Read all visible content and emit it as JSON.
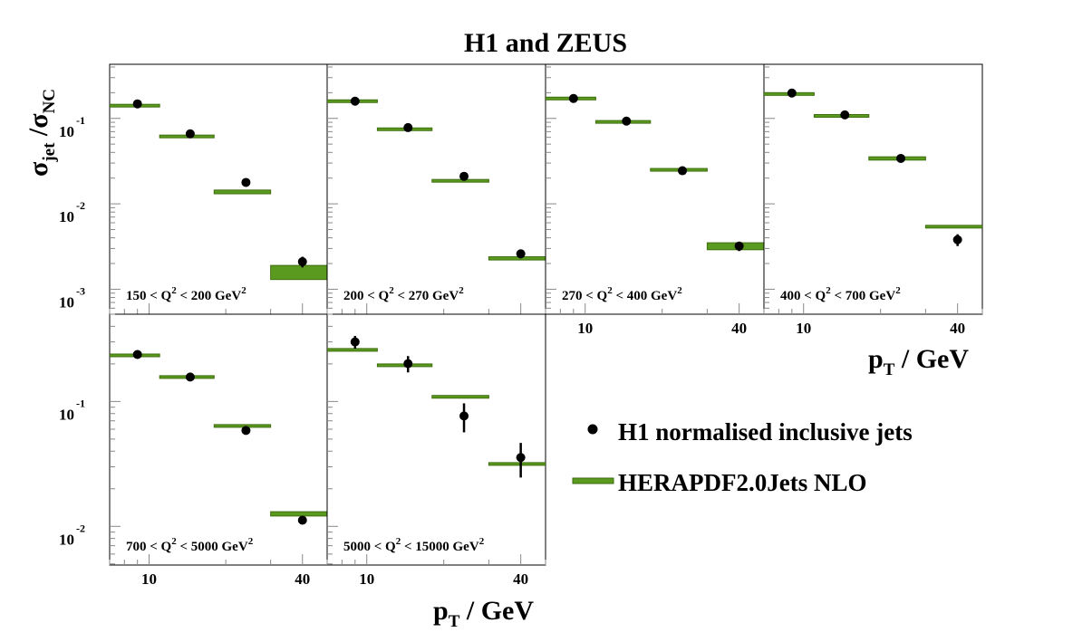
{
  "chart_data": {
    "type": "scatter",
    "title": "H1 and ZEUS",
    "ylabel": {
      "main": "σ",
      "sub1": "jet",
      "sep": " /σ",
      "sub2": "NC"
    },
    "xlabel": {
      "main": "p",
      "sub": "T",
      "rest": " / GeV"
    },
    "x_scale": "log",
    "y_scale": "log",
    "xlim": [
      7,
      50
    ],
    "x_ticks": [
      "10",
      "40"
    ],
    "x_tick_values": [
      10,
      40
    ],
    "bin_edges": [
      7,
      11,
      18,
      30,
      50
    ],
    "bin_centers": [
      9,
      14.5,
      24,
      40
    ],
    "y_tick_base": "10",
    "legend": {
      "position": "right-middle",
      "entries": [
        {
          "label": "H1 normalised inclusive jets",
          "marker": "point"
        },
        {
          "label": "HERAPDF2.0Jets NLO",
          "marker": "band"
        }
      ]
    },
    "colors": {
      "theory": "#5a9a1e",
      "theory_edge": "#3f6e10",
      "data": "#000000"
    },
    "rows": [
      {
        "ylim": [
          0.00051,
          0.43
        ],
        "y_ticks": [
          {
            "value": 0.1,
            "exp": "-1"
          },
          {
            "value": 0.01,
            "exp": "-2"
          },
          {
            "value": 0.001,
            "exp": "-3"
          }
        ]
      },
      {
        "ylim": [
          0.0049,
          0.5
        ],
        "y_ticks": [
          {
            "value": 0.1,
            "exp": "-1"
          },
          {
            "value": 0.01,
            "exp": "-2"
          }
        ]
      }
    ],
    "panels": [
      {
        "label": {
          "pre": "150 < Q",
          "mid": " < 200 GeV"
        },
        "row": 0,
        "data": [
          0.148,
          0.066,
          0.0178,
          0.0021
        ],
        "data_err": [
          0.004,
          0.002,
          0.0006,
          0.0003
        ],
        "theory": [
          0.141,
          0.0615,
          0.0138,
          0.0016
        ],
        "theory_err": [
          0.003,
          0.0015,
          0.0007,
          0.0003
        ]
      },
      {
        "label": {
          "pre": "200 < Q",
          "mid": " < 270 GeV"
        },
        "row": 0,
        "data": [
          0.159,
          0.078,
          0.021,
          0.0026
        ],
        "data_err": [
          0.004,
          0.002,
          0.0006,
          0.0003
        ],
        "theory": [
          0.159,
          0.0746,
          0.0186,
          0.0023
        ],
        "theory_err": [
          0.003,
          0.0015,
          0.0005,
          0.0001
        ]
      },
      {
        "label": {
          "pre": "270 < Q",
          "mid": " < 400 GeV"
        },
        "row": 0,
        "data": [
          0.171,
          0.093,
          0.0244,
          0.0032
        ],
        "data_err": [
          0.004,
          0.002,
          0.0007,
          0.0004
        ],
        "theory": [
          0.171,
          0.091,
          0.025,
          0.0032
        ],
        "theory_err": [
          0.003,
          0.0015,
          0.0005,
          0.0003
        ]
      },
      {
        "label": {
          "pre": "400 < Q",
          "mid": " < 700 GeV"
        },
        "row": 0,
        "data": [
          0.198,
          0.11,
          0.034,
          0.0038
        ],
        "data_err": [
          0.005,
          0.003,
          0.001,
          0.0006
        ],
        "theory": [
          0.193,
          0.107,
          0.034,
          0.0054
        ],
        "theory_err": [
          0.003,
          0.002,
          0.0015,
          0.0001
        ]
      },
      {
        "label": {
          "pre": "700 < Q",
          "mid": " < 5000 GeV"
        },
        "row": 1,
        "data": [
          0.238,
          0.157,
          0.0586,
          0.0112
        ],
        "data_err": [
          0.006,
          0.004,
          0.002,
          0.0007
        ],
        "theory": [
          0.234,
          0.157,
          0.0637,
          0.0126
        ],
        "theory_err": [
          0.003,
          0.003,
          0.001,
          0.0005
        ]
      },
      {
        "label": {
          "pre": "5000 < Q",
          "mid": " < 15000 GeV"
        },
        "row": 1,
        "data": [
          0.3,
          0.201,
          0.0766,
          0.0356
        ],
        "data_err": [
          0.035,
          0.03,
          0.02,
          0.011
        ],
        "theory": [
          0.259,
          0.195,
          0.109,
          0.0316
        ],
        "theory_err": [
          0.002,
          0.002,
          0.001,
          0.0005
        ]
      }
    ],
    "superscript": "2"
  }
}
